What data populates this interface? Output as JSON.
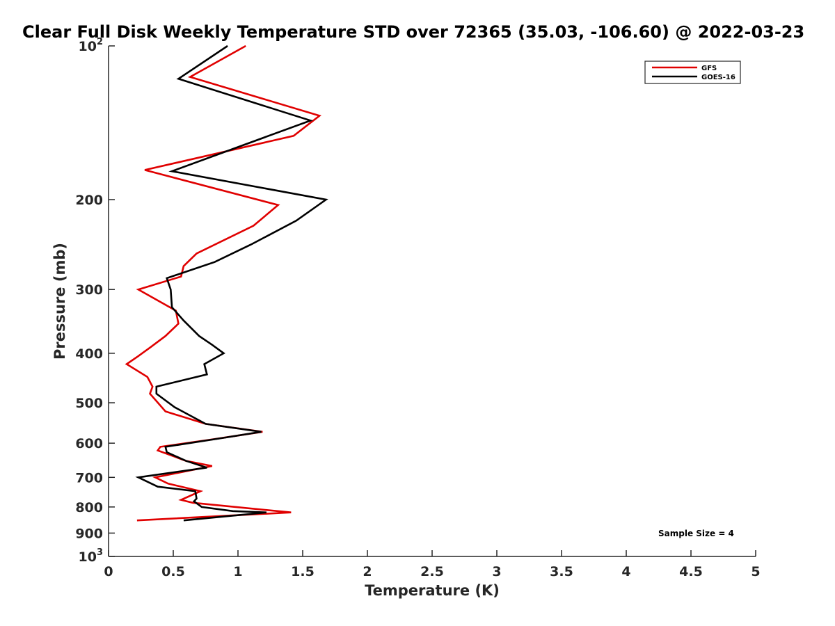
{
  "chart_data": {
    "type": "line",
    "title": "Clear Full Disk Weekly Temperature STD over 72365 (35.03, -106.60) @ 2022-03-23",
    "xlabel": "Temperature (K)",
    "ylabel": "Pressure (mb)",
    "xlim": [
      0,
      5
    ],
    "ylim": [
      100,
      1000
    ],
    "yscale": "log",
    "y_reversed": true,
    "x_ticks": [
      "0",
      "0.5",
      "1",
      "1.5",
      "2",
      "2.5",
      "3",
      "3.5",
      "4",
      "4.5",
      "5"
    ],
    "y_ticks": [
      {
        "value": 100,
        "base": "10",
        "exp": "2"
      },
      {
        "value": 200,
        "label": "200"
      },
      {
        "value": 300,
        "label": "300"
      },
      {
        "value": 400,
        "label": "400"
      },
      {
        "value": 500,
        "label": "500"
      },
      {
        "value": 600,
        "label": "600"
      },
      {
        "value": 700,
        "label": "700"
      },
      {
        "value": 800,
        "label": "800"
      },
      {
        "value": 900,
        "label": "900"
      },
      {
        "value": 1000,
        "base": "10",
        "exp": "3"
      }
    ],
    "grid": false,
    "legend_position": "top-right",
    "series": [
      {
        "name": "GFS",
        "color": "#e00000",
        "points": [
          [
            1.06,
            100
          ],
          [
            0.63,
            115
          ],
          [
            1.63,
            137
          ],
          [
            1.43,
            150
          ],
          [
            0.28,
            175
          ],
          [
            1.31,
            205
          ],
          [
            1.12,
            225
          ],
          [
            0.68,
            255
          ],
          [
            0.58,
            270
          ],
          [
            0.56,
            283
          ],
          [
            0.23,
            300
          ],
          [
            0.52,
            330
          ],
          [
            0.54,
            350
          ],
          [
            0.44,
            370
          ],
          [
            0.32,
            390
          ],
          [
            0.23,
            405
          ],
          [
            0.14,
            420
          ],
          [
            0.3,
            445
          ],
          [
            0.34,
            465
          ],
          [
            0.32,
            480
          ],
          [
            0.44,
            520
          ],
          [
            0.75,
            550
          ],
          [
            1.19,
            570
          ],
          [
            0.8,
            590
          ],
          [
            0.4,
            610
          ],
          [
            0.38,
            620
          ],
          [
            0.6,
            650
          ],
          [
            0.8,
            665
          ],
          [
            0.36,
            700
          ],
          [
            0.46,
            720
          ],
          [
            0.71,
            745
          ],
          [
            0.56,
            775
          ],
          [
            0.65,
            785
          ],
          [
            1.41,
            820
          ],
          [
            0.22,
            850
          ]
        ]
      },
      {
        "name": "GOES-16",
        "color": "#000000",
        "points": [
          [
            0.92,
            100
          ],
          [
            0.54,
            116
          ],
          [
            1.56,
            140
          ],
          [
            0.49,
            176
          ],
          [
            1.68,
            200
          ],
          [
            1.45,
            220
          ],
          [
            1.1,
            245
          ],
          [
            0.82,
            265
          ],
          [
            0.45,
            285
          ],
          [
            0.48,
            300
          ],
          [
            0.49,
            325
          ],
          [
            0.58,
            345
          ],
          [
            0.7,
            370
          ],
          [
            0.8,
            385
          ],
          [
            0.89,
            400
          ],
          [
            0.74,
            420
          ],
          [
            0.76,
            440
          ],
          [
            0.37,
            465
          ],
          [
            0.37,
            480
          ],
          [
            0.51,
            510
          ],
          [
            0.75,
            550
          ],
          [
            1.18,
            570
          ],
          [
            0.9,
            585
          ],
          [
            0.44,
            610
          ],
          [
            0.45,
            625
          ],
          [
            0.6,
            650
          ],
          [
            0.76,
            670
          ],
          [
            0.23,
            700
          ],
          [
            0.38,
            730
          ],
          [
            0.67,
            745
          ],
          [
            0.68,
            770
          ],
          [
            0.66,
            780
          ],
          [
            0.72,
            800
          ],
          [
            0.96,
            815
          ],
          [
            1.22,
            820
          ],
          [
            0.58,
            850
          ]
        ]
      }
    ],
    "annotations": [
      "Sample Size = 4"
    ]
  }
}
